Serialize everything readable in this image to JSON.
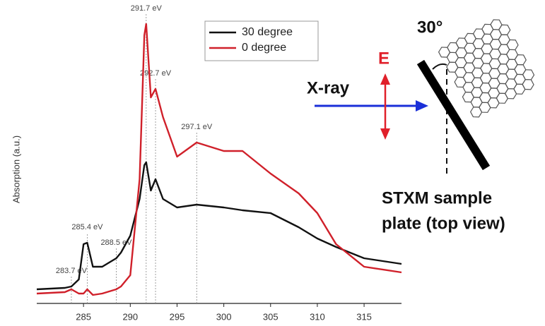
{
  "chart_data": {
    "type": "line",
    "y_label": "Absorption (a.u.)",
    "x": [
      280,
      283,
      283.7,
      284.5,
      285,
      285.4,
      286,
      287,
      288,
      288.5,
      289,
      290,
      291,
      291.5,
      291.7,
      292.2,
      292.7,
      293.5,
      295,
      297.1,
      300,
      302,
      305,
      308,
      310,
      312,
      315,
      319
    ],
    "series": [
      {
        "name": "30 degree",
        "color": "#111111",
        "values": [
          0.05,
          0.055,
          0.06,
          0.085,
          0.21,
          0.215,
          0.13,
          0.13,
          0.15,
          0.16,
          0.18,
          0.24,
          0.37,
          0.49,
          0.5,
          0.4,
          0.44,
          0.37,
          0.34,
          0.35,
          0.34,
          0.33,
          0.32,
          0.27,
          0.23,
          0.2,
          0.16,
          0.14
        ]
      },
      {
        "name": "0 degree",
        "color": "#d0202a",
        "values": [
          0.035,
          0.04,
          0.05,
          0.035,
          0.035,
          0.05,
          0.03,
          0.035,
          0.045,
          0.05,
          0.06,
          0.1,
          0.44,
          0.95,
          0.99,
          0.73,
          0.76,
          0.66,
          0.52,
          0.57,
          0.54,
          0.54,
          0.46,
          0.39,
          0.32,
          0.21,
          0.13,
          0.11
        ]
      }
    ],
    "xlim": [
      280,
      319
    ],
    "xticks": [
      285,
      290,
      295,
      300,
      305,
      310,
      315
    ],
    "ylim": [
      0,
      1.03
    ],
    "legend": "top",
    "annotations": [
      {
        "x": 283.7,
        "label": "283.7 eV"
      },
      {
        "x": 285.4,
        "label": "285.4 eV"
      },
      {
        "x": 288.5,
        "label": "288.5 eV"
      },
      {
        "x": 291.7,
        "label": "291.7 eV"
      },
      {
        "x": 292.7,
        "label": "292.7 eV"
      },
      {
        "x": 297.1,
        "label": "297.1 eV"
      }
    ]
  },
  "diagram": {
    "angle_label": "30°",
    "beam_label": "X-ray",
    "field_label": "E",
    "plate_label": [
      "STXM sample",
      "plate (top view)"
    ]
  }
}
